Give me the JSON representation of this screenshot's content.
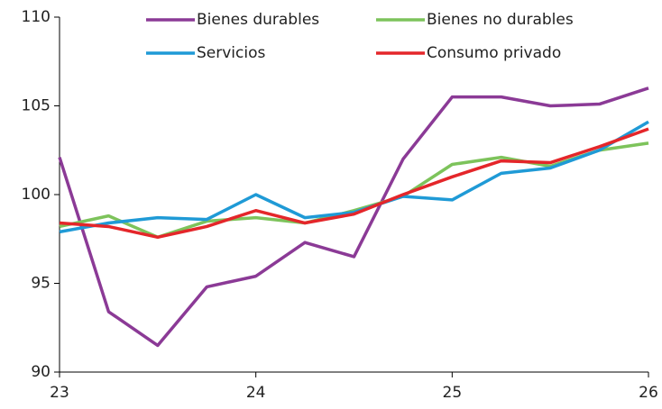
{
  "chart_data": {
    "type": "line",
    "x": [
      23,
      23.25,
      23.5,
      23.75,
      24,
      24.25,
      24.5,
      24.75,
      25,
      25.25,
      25.5,
      25.75,
      26
    ],
    "xlim": [
      23,
      26
    ],
    "xticks": [
      23,
      24,
      25,
      26
    ],
    "ylim": [
      90,
      110
    ],
    "yticks": [
      90,
      95,
      100,
      105,
      110
    ],
    "grid": false,
    "series": [
      {
        "name": "Bienes durables",
        "color": "#8b3a96",
        "values": [
          102.1,
          93.4,
          91.5,
          94.8,
          95.4,
          97.3,
          96.5,
          102.0,
          105.5,
          105.5,
          105.0,
          105.1,
          106.0
        ]
      },
      {
        "name": "Bienes no durables",
        "color": "#7dc35b",
        "values": [
          98.2,
          98.8,
          97.6,
          98.5,
          98.7,
          98.4,
          99.1,
          99.9,
          101.7,
          102.1,
          101.6,
          102.5,
          102.9
        ]
      },
      {
        "name": "Servicios",
        "color": "#1f9ad6",
        "values": [
          97.9,
          98.4,
          98.7,
          98.6,
          100.0,
          98.7,
          99.0,
          99.9,
          99.7,
          101.2,
          101.5,
          102.5,
          104.1
        ]
      },
      {
        "name": "Consumo privado",
        "color": "#e4262a",
        "values": [
          98.4,
          98.2,
          97.6,
          98.2,
          99.1,
          98.4,
          98.9,
          100.0,
          101.0,
          101.9,
          101.8,
          102.7,
          103.7
        ]
      }
    ]
  }
}
